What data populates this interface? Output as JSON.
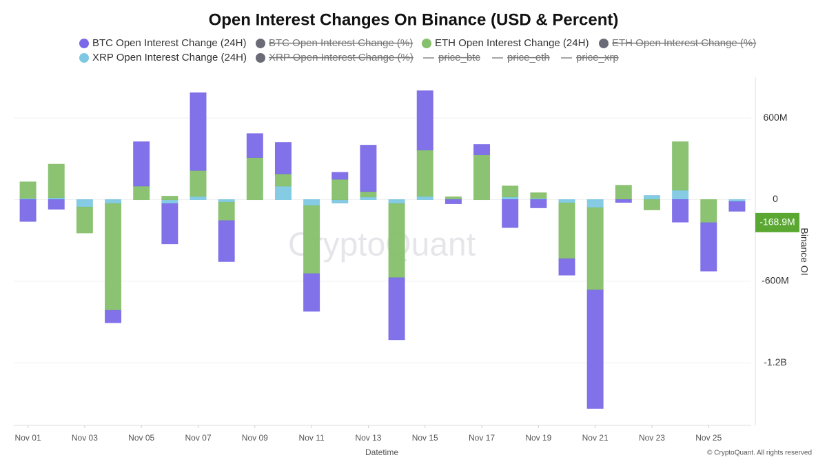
{
  "chart_data": {
    "type": "stacked_bar",
    "title": "Open Interest Changes On Binance (USD & Percent)",
    "x_label": "Datetime",
    "y_label": "Binance OI",
    "watermark": "CryptoQuant",
    "copyright": "© CryptoQuant. All rights reserved",
    "categories": [
      "Nov 01",
      null,
      "Nov 03",
      null,
      "Nov 05",
      null,
      "Nov 07",
      null,
      "Nov 09",
      null,
      "Nov 11",
      null,
      "Nov 13",
      null,
      "Nov 15",
      null,
      "Nov 17",
      null,
      "Nov 19",
      null,
      "Nov 21",
      null,
      "Nov 23",
      null,
      "Nov 25",
      null
    ],
    "series": [
      {
        "name": "BTC Open Interest Change (24H)",
        "color": "#7b6ae8",
        "values": [
          -160000000,
          -70000000,
          0,
          -90000000,
          325000000,
          -295000000,
          570000000,
          -300000000,
          175000000,
          230000000,
          -275000000,
          50000000,
          340000000,
          -455000000,
          435000000,
          -30000000,
          75000000,
          -205000000,
          -60000000,
          -120000000,
          -870000000,
          -20000000,
          0,
          -165000000,
          -355000000,
          -70000000
        ]
      },
      {
        "name": "ETH Open Interest Change (24H)",
        "color": "#86c06c",
        "values": [
          120000000,
          245000000,
          -190000000,
          -785000000,
          100000000,
          25000000,
          190000000,
          -135000000,
          310000000,
          90000000,
          -500000000,
          150000000,
          40000000,
          -545000000,
          340000000,
          15000000,
          330000000,
          80000000,
          40000000,
          -410000000,
          -605000000,
          105000000,
          -75000000,
          355000000,
          -170000000,
          0
        ]
      },
      {
        "name": "XRP Open Interest Change (24H)",
        "color": "#7ec8e3",
        "values": [
          10000000,
          15000000,
          -55000000,
          -30000000,
          0,
          -30000000,
          25000000,
          -20000000,
          0,
          100000000,
          -45000000,
          -25000000,
          20000000,
          -30000000,
          25000000,
          5000000,
          0,
          20000000,
          10000000,
          -25000000,
          -60000000,
          0,
          30000000,
          70000000,
          0,
          -15000000
        ]
      }
    ],
    "hidden_legend": [
      {
        "name": "BTC Open Interest Change (%)",
        "symbol": "dot",
        "color": "#6b6b78"
      },
      {
        "name": "ETH Open Interest Change (%)",
        "symbol": "dot",
        "color": "#6b6b78"
      },
      {
        "name": "XRP Open Interest Change (%)",
        "symbol": "dot",
        "color": "#6b6b78"
      },
      {
        "name": "price_btc",
        "symbol": "line",
        "color": "#888888"
      },
      {
        "name": "price_eth",
        "symbol": "line",
        "color": "#888888"
      },
      {
        "name": "price_xrp",
        "symbol": "line",
        "color": "#888888"
      }
    ],
    "ylim": [
      -1650000000,
      900000000
    ],
    "yticks": [
      {
        "value": -1200000000,
        "label": "-1.2B"
      },
      {
        "value": -600000000,
        "label": "-600M"
      },
      {
        "value": 0,
        "label": "0"
      },
      {
        "value": 600000000,
        "label": "600M"
      }
    ],
    "last_value": {
      "value": -168900000,
      "label": "-168.9M",
      "color": "#5aa832"
    },
    "grid": true,
    "y_axis_side": "right"
  }
}
